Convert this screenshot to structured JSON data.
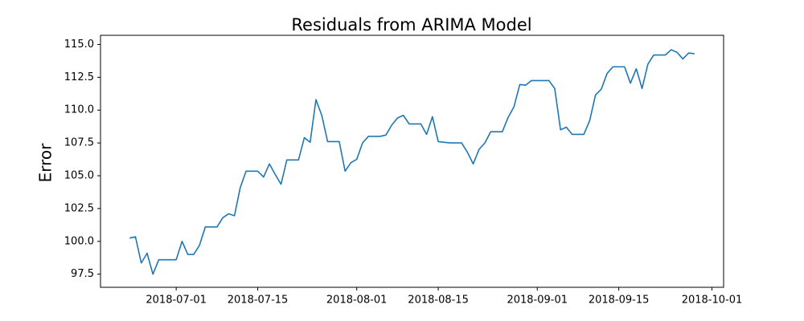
{
  "chart_data": {
    "type": "line",
    "title": "Residuals from ARIMA Model",
    "y_label": "Error",
    "color": "#1f77b4",
    "x": [
      "2018-06-23",
      "2018-06-24",
      "2018-06-25",
      "2018-06-26",
      "2018-06-27",
      "2018-06-28",
      "2018-06-29",
      "2018-06-30",
      "2018-07-01",
      "2018-07-02",
      "2018-07-03",
      "2018-07-04",
      "2018-07-05",
      "2018-07-06",
      "2018-07-07",
      "2018-07-08",
      "2018-07-09",
      "2018-07-10",
      "2018-07-11",
      "2018-07-12",
      "2018-07-13",
      "2018-07-14",
      "2018-07-15",
      "2018-07-16",
      "2018-07-17",
      "2018-07-18",
      "2018-07-19",
      "2018-07-20",
      "2018-07-21",
      "2018-07-22",
      "2018-07-23",
      "2018-07-24",
      "2018-07-25",
      "2018-07-26",
      "2018-07-27",
      "2018-07-28",
      "2018-07-29",
      "2018-07-30",
      "2018-07-31",
      "2018-08-01",
      "2018-08-02",
      "2018-08-03",
      "2018-08-04",
      "2018-08-05",
      "2018-08-06",
      "2018-08-07",
      "2018-08-08",
      "2018-08-09",
      "2018-08-10",
      "2018-08-11",
      "2018-08-12",
      "2018-08-13",
      "2018-08-14",
      "2018-08-15",
      "2018-08-16",
      "2018-08-17",
      "2018-08-18",
      "2018-08-19",
      "2018-08-20",
      "2018-08-21",
      "2018-08-22",
      "2018-08-23",
      "2018-08-24",
      "2018-08-25",
      "2018-08-26",
      "2018-08-27",
      "2018-08-28",
      "2018-08-29",
      "2018-08-30",
      "2018-08-31",
      "2018-09-01",
      "2018-09-02",
      "2018-09-03",
      "2018-09-04",
      "2018-09-05",
      "2018-09-06",
      "2018-09-07",
      "2018-09-08",
      "2018-09-09",
      "2018-09-10",
      "2018-09-11",
      "2018-09-12",
      "2018-09-13",
      "2018-09-14",
      "2018-09-15",
      "2018-09-16",
      "2018-09-17",
      "2018-09-18",
      "2018-09-19",
      "2018-09-20",
      "2018-09-21",
      "2018-09-22",
      "2018-09-23",
      "2018-09-24",
      "2018-09-25",
      "2018-09-26",
      "2018-09-27",
      "2018-09-28"
    ],
    "values": [
      100.25,
      100.35,
      98.35,
      99.1,
      97.5,
      98.6,
      98.6,
      98.6,
      98.6,
      100.0,
      99.0,
      99.0,
      99.7,
      101.1,
      101.1,
      101.1,
      101.8,
      102.1,
      101.95,
      104.1,
      105.35,
      105.35,
      105.35,
      104.9,
      105.9,
      105.1,
      104.35,
      106.2,
      106.2,
      106.2,
      107.9,
      107.55,
      110.8,
      109.6,
      107.6,
      107.6,
      107.6,
      105.35,
      106.0,
      106.25,
      107.5,
      108.0,
      108.0,
      108.0,
      108.1,
      108.85,
      109.4,
      109.6,
      108.95,
      108.95,
      108.95,
      108.15,
      109.5,
      107.6,
      107.55,
      107.5,
      107.5,
      107.5,
      106.8,
      105.9,
      107.0,
      107.5,
      108.35,
      108.35,
      108.35,
      109.45,
      110.25,
      111.95,
      111.9,
      112.25,
      112.25,
      112.25,
      112.25,
      111.65,
      108.5,
      108.7,
      108.15,
      108.15,
      108.15,
      109.2,
      111.15,
      111.6,
      112.8,
      113.3,
      113.3,
      113.3,
      112.05,
      113.15,
      111.65,
      113.5,
      114.2,
      114.2,
      114.2,
      114.6,
      114.4,
      113.9,
      114.35,
      114.3
    ],
    "xlim": [
      "2018-06-18",
      "2018-10-03"
    ],
    "xticks": [
      "2018-07-01",
      "2018-07-15",
      "2018-08-01",
      "2018-08-15",
      "2018-09-01",
      "2018-09-15",
      "2018-10-01"
    ],
    "ylim": [
      96.5,
      115.7
    ],
    "yticks": [
      97.5,
      {
        "value": 100,
        "label": "100.0"
      },
      102.5,
      {
        "value": 105,
        "label": "105.0"
      },
      107.5,
      {
        "value": 110,
        "label": "110.0"
      },
      112.5,
      {
        "value": 115,
        "label": "115.0"
      }
    ]
  }
}
